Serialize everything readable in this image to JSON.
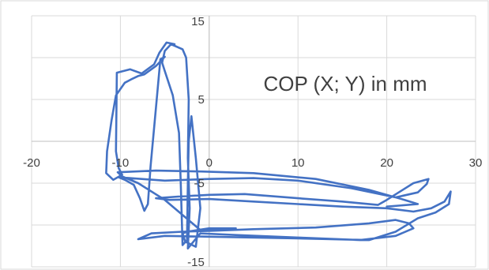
{
  "chart_data": {
    "type": "scatter",
    "title": "COP (X; Y) in mm",
    "xlabel": "",
    "ylabel": "",
    "xlim": [
      -20,
      30
    ],
    "ylim": [
      -15,
      15
    ],
    "x_ticks": [
      -20,
      -10,
      0,
      10,
      20,
      30
    ],
    "y_ticks": [
      -15,
      -5,
      5,
      15
    ],
    "x_tick_labels": [
      "-20",
      "-10",
      "0",
      "10",
      "20",
      "30"
    ],
    "y_tick_labels": [
      "-15",
      "-5",
      "5",
      "15"
    ],
    "grid": true,
    "legend": "none",
    "color": "#4472c4",
    "series": [
      {
        "points": [
          [
            -3.9,
            11.6
          ],
          [
            -4.8,
            11.8
          ],
          [
            -5.6,
            10.6
          ],
          [
            -6.2,
            9.2
          ],
          [
            -7.6,
            8.1
          ],
          [
            -8.9,
            8.6
          ],
          [
            -10.4,
            8.2
          ],
          [
            -10.5,
            -1.2
          ],
          [
            -10.2,
            -3.2
          ],
          [
            -9.8,
            -4.0
          ],
          [
            -10.8,
            -4.6
          ],
          [
            -11.6,
            -3.8
          ],
          [
            -11.5,
            -1.2
          ],
          [
            -11.0,
            2.5
          ],
          [
            -10.5,
            5.5
          ],
          [
            -9.5,
            7.0
          ],
          [
            -8.8,
            7.4
          ],
          [
            -8.0,
            7.8
          ],
          [
            -7.3,
            8.0
          ],
          [
            -6.0,
            9.0
          ],
          [
            -5.0,
            10.1
          ],
          [
            -5.5,
            9.8
          ],
          [
            -6.0,
            4.0
          ],
          [
            -6.6,
            -3.0
          ],
          [
            -6.9,
            -7.5
          ],
          [
            -7.3,
            -8.3
          ],
          [
            -7.8,
            -6.8
          ],
          [
            -8.5,
            -5.2
          ],
          [
            -9.5,
            -4.6
          ],
          [
            -10.2,
            -4.3
          ],
          [
            -5.0,
            -4.7
          ],
          [
            0.0,
            -4.5
          ],
          [
            5.0,
            -4.4
          ],
          [
            10.0,
            -4.7
          ],
          [
            16.0,
            -5.6
          ],
          [
            21.0,
            -6.7
          ],
          [
            23.5,
            -6.1
          ],
          [
            24.5,
            -5.1
          ],
          [
            24.7,
            -4.5
          ],
          [
            23.0,
            -5.0
          ],
          [
            20.0,
            -7.0
          ],
          [
            19.0,
            -7.6
          ],
          [
            15.0,
            -7.2
          ],
          [
            10.0,
            -6.8
          ],
          [
            4.0,
            -6.3
          ],
          [
            0.0,
            -6.4
          ],
          [
            -3.5,
            -6.6
          ],
          [
            -6.0,
            -6.8
          ],
          [
            -4.5,
            -7.0
          ],
          [
            0.0,
            -6.9
          ],
          [
            5.0,
            -7.2
          ],
          [
            10.0,
            -7.5
          ],
          [
            15.0,
            -7.8
          ],
          [
            20.0,
            -8.0
          ],
          [
            23.0,
            -8.4
          ],
          [
            25.0,
            -8.0
          ],
          [
            26.5,
            -7.2
          ],
          [
            27.2,
            -6.0
          ],
          [
            27.0,
            -7.5
          ],
          [
            25.5,
            -8.5
          ],
          [
            23.5,
            -9.2
          ],
          [
            21.0,
            -10.8
          ],
          [
            18.0,
            -11.8
          ],
          [
            10.0,
            -11.6
          ],
          [
            0.0,
            -11.4
          ],
          [
            -5.0,
            -11.3
          ],
          [
            -8.0,
            -11.7
          ],
          [
            -6.5,
            -11.0
          ],
          [
            -3.0,
            -10.8
          ],
          [
            0.0,
            -10.7
          ],
          [
            5.0,
            -10.5
          ],
          [
            12.0,
            -10.3
          ],
          [
            18.0,
            -9.8
          ],
          [
            21.0,
            -9.4
          ],
          [
            22.5,
            -9.8
          ],
          [
            23.0,
            -10.4
          ],
          [
            21.0,
            -11.3
          ],
          [
            17.0,
            -11.8
          ],
          [
            10.0,
            -11.5
          ],
          [
            3.0,
            -11.2
          ],
          [
            -1.0,
            -11.0
          ],
          [
            -2.4,
            -12.8
          ],
          [
            -2.2,
            -8.0
          ],
          [
            -2.4,
            -2.0
          ],
          [
            -2.3,
            5.0
          ],
          [
            -2.6,
            10.0
          ],
          [
            -3.0,
            11.0
          ],
          [
            -4.3,
            11.6
          ],
          [
            -5.0,
            10.8
          ],
          [
            -5.3,
            9.4
          ],
          [
            -5.0,
            8.4
          ],
          [
            -4.1,
            5.5
          ],
          [
            -3.4,
            1.0
          ],
          [
            -3.2,
            -5.0
          ],
          [
            -3.0,
            -12.4
          ],
          [
            -2.5,
            -11.8
          ],
          [
            -2.4,
            -5.0
          ],
          [
            -2.3,
            0.0
          ],
          [
            -2.0,
            3.0
          ],
          [
            -1.5,
            -2.0
          ],
          [
            -1.0,
            -8.0
          ],
          [
            -1.5,
            -12.6
          ],
          [
            -2.7,
            -12.0
          ],
          [
            -3.0,
            -11.0
          ],
          [
            -2.5,
            -10.8
          ],
          [
            0.0,
            -10.4
          ],
          [
            3.0,
            -10.4
          ],
          [
            -1.0,
            -10.6
          ],
          [
            -5.0,
            -7.0
          ],
          [
            -8.0,
            -5.0
          ],
          [
            -9.8,
            -4.2
          ],
          [
            -10.3,
            -3.7
          ],
          [
            -6.0,
            -3.5
          ],
          [
            -1.0,
            -3.6
          ],
          [
            5.0,
            -3.8
          ],
          [
            12.0,
            -4.5
          ],
          [
            18.0,
            -5.8
          ],
          [
            22.0,
            -7.0
          ],
          [
            23.5,
            -7.5
          ],
          [
            20.0,
            -7.8
          ]
        ]
      }
    ]
  }
}
